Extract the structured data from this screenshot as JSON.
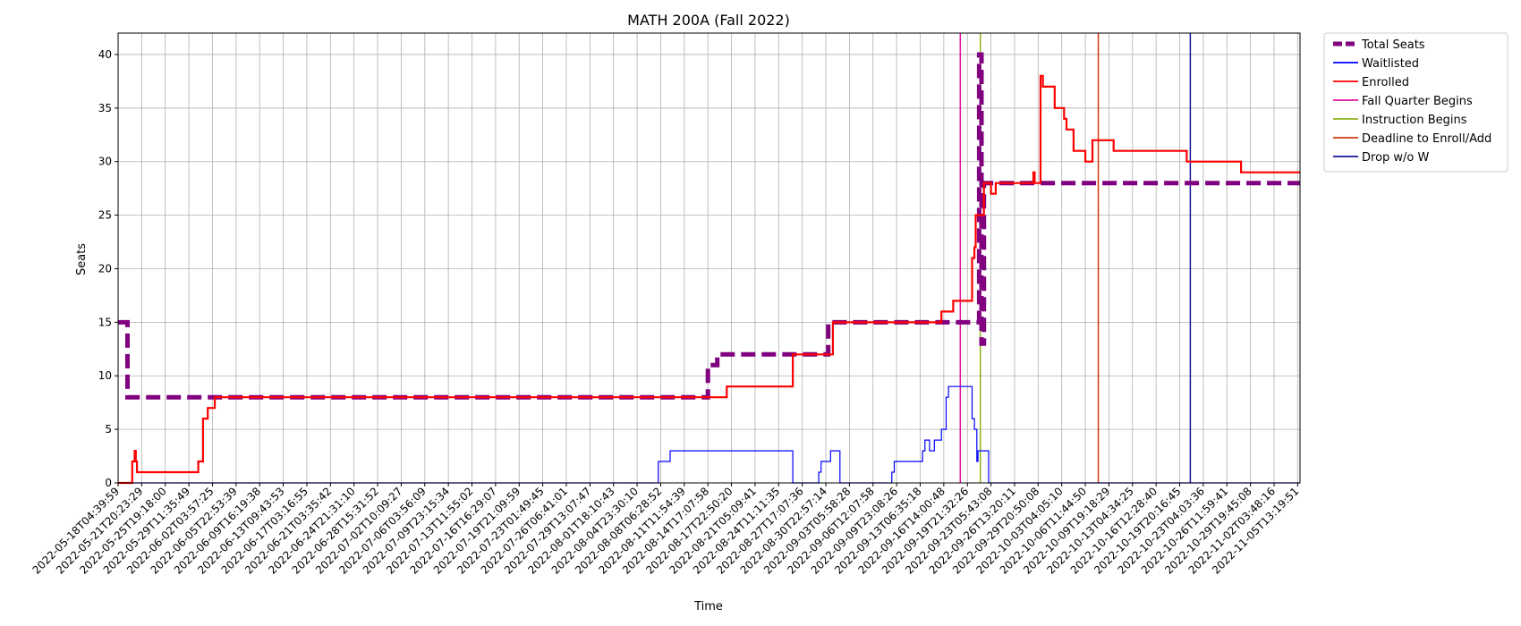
{
  "chart_data": {
    "type": "line",
    "title": "MATH 200A (Fall 2022)",
    "xlabel": "Time",
    "ylabel": "Seats",
    "ylim": [
      0,
      42
    ],
    "yticks": [
      0,
      5,
      10,
      15,
      20,
      25,
      30,
      35,
      40
    ],
    "grid": true,
    "legend_position": "outside-top-right",
    "x_tick_labels": [
      "2022-05-18T04:39:59",
      "2022-05-21T20:23:29",
      "2022-05-25T19:18:00",
      "2022-05-29T11:35:49",
      "2022-06-02T03:57:25",
      "2022-06-05T22:53:39",
      "2022-06-09T16:19:38",
      "2022-06-13T09:43:53",
      "2022-06-17T03:16:55",
      "2022-06-21T03:35:42",
      "2022-06-24T21:31:10",
      "2022-06-28T15:31:52",
      "2022-07-02T10:09:27",
      "2022-07-06T03:56:09",
      "2022-07-09T23:15:34",
      "2022-07-13T11:55:02",
      "2022-07-16T16:29:07",
      "2022-07-19T21:09:59",
      "2022-07-23T01:49:45",
      "2022-07-26T06:41:01",
      "2022-07-29T13:07:47",
      "2022-08-01T18:10:43",
      "2022-08-04T23:30:10",
      "2022-08-08T06:28:52",
      "2022-08-11T11:54:39",
      "2022-08-14T17:07:58",
      "2022-08-17T22:50:20",
      "2022-08-21T05:09:41",
      "2022-08-24T11:11:35",
      "2022-08-27T17:07:36",
      "2022-08-30T22:57:14",
      "2022-09-03T05:58:28",
      "2022-09-06T12:07:58",
      "2022-09-09T23:08:26",
      "2022-09-13T06:35:18",
      "2022-09-16T14:00:48",
      "2022-09-19T21:32:26",
      "2022-09-23T05:43:08",
      "2022-09-26T13:20:11",
      "2022-09-29T20:50:08",
      "2022-10-03T04:05:10",
      "2022-10-06T11:44:50",
      "2022-10-09T19:18:29",
      "2022-10-13T04:34:25",
      "2022-10-16T12:28:40",
      "2022-10-19T20:16:45",
      "2022-10-23T04:03:36",
      "2022-10-26T11:59:41",
      "2022-10-29T19:45:08",
      "2022-11-02T03:48:16",
      "2022-11-05T13:19:51"
    ],
    "x_range": [
      0,
      50.1
    ],
    "series": [
      {
        "name": "Total Seats",
        "color": "#800080",
        "style": "dashed",
        "width": 5,
        "points": [
          [
            0,
            15
          ],
          [
            0.4,
            15
          ],
          [
            0.4,
            8
          ],
          [
            25,
            8
          ],
          [
            25,
            11
          ],
          [
            25.4,
            11
          ],
          [
            25.4,
            12
          ],
          [
            30.1,
            12
          ],
          [
            30.1,
            15
          ],
          [
            36.5,
            15
          ],
          [
            36.5,
            40
          ],
          [
            36.6,
            40
          ],
          [
            36.6,
            13
          ],
          [
            36.7,
            13
          ],
          [
            36.7,
            28
          ],
          [
            50.1,
            28
          ]
        ]
      },
      {
        "name": "Waitlisted",
        "color": "#0000ff",
        "style": "solid",
        "width": 1.2,
        "points": [
          [
            0,
            0
          ],
          [
            22.9,
            0
          ],
          [
            22.9,
            2
          ],
          [
            23.4,
            2
          ],
          [
            23.4,
            3
          ],
          [
            28.6,
            3
          ],
          [
            28.6,
            0
          ],
          [
            29.7,
            0
          ],
          [
            29.7,
            1
          ],
          [
            29.8,
            1
          ],
          [
            29.8,
            2
          ],
          [
            30.2,
            2
          ],
          [
            30.2,
            3
          ],
          [
            30.6,
            3
          ],
          [
            30.6,
            0
          ],
          [
            32.8,
            0
          ],
          [
            32.8,
            1
          ],
          [
            32.9,
            1
          ],
          [
            32.9,
            2
          ],
          [
            34.1,
            2
          ],
          [
            34.1,
            3
          ],
          [
            34.2,
            3
          ],
          [
            34.2,
            4
          ],
          [
            34.4,
            4
          ],
          [
            34.4,
            3
          ],
          [
            34.6,
            3
          ],
          [
            34.6,
            4
          ],
          [
            34.9,
            4
          ],
          [
            34.9,
            5
          ],
          [
            35.1,
            5
          ],
          [
            35.1,
            8
          ],
          [
            35.2,
            8
          ],
          [
            35.2,
            9
          ],
          [
            36.2,
            9
          ],
          [
            36.2,
            6
          ],
          [
            36.3,
            6
          ],
          [
            36.3,
            5
          ],
          [
            36.4,
            5
          ],
          [
            36.4,
            2
          ],
          [
            36.45,
            2
          ],
          [
            36.45,
            3
          ],
          [
            36.9,
            3
          ],
          [
            36.9,
            0
          ],
          [
            50.1,
            0
          ]
        ]
      },
      {
        "name": "Enrolled",
        "color": "#ff0000",
        "style": "solid",
        "width": 2.2,
        "points": [
          [
            0,
            0
          ],
          [
            0.6,
            0
          ],
          [
            0.6,
            2
          ],
          [
            0.7,
            2
          ],
          [
            0.7,
            3
          ],
          [
            0.75,
            3
          ],
          [
            0.75,
            2
          ],
          [
            0.8,
            2
          ],
          [
            0.8,
            1
          ],
          [
            3.4,
            1
          ],
          [
            3.4,
            2
          ],
          [
            3.6,
            2
          ],
          [
            3.6,
            6
          ],
          [
            3.8,
            6
          ],
          [
            3.8,
            7
          ],
          [
            4.1,
            7
          ],
          [
            4.1,
            8
          ],
          [
            25.8,
            8
          ],
          [
            25.8,
            9
          ],
          [
            28.6,
            9
          ],
          [
            28.6,
            12
          ],
          [
            30.3,
            12
          ],
          [
            30.3,
            15
          ],
          [
            34.9,
            15
          ],
          [
            34.9,
            16
          ],
          [
            35.4,
            16
          ],
          [
            35.4,
            17
          ],
          [
            36.2,
            17
          ],
          [
            36.2,
            21
          ],
          [
            36.3,
            21
          ],
          [
            36.3,
            22
          ],
          [
            36.35,
            22
          ],
          [
            36.35,
            25
          ],
          [
            36.7,
            25
          ],
          [
            36.7,
            28
          ],
          [
            37.0,
            28
          ],
          [
            37.0,
            27
          ],
          [
            37.2,
            27
          ],
          [
            37.2,
            28
          ],
          [
            38.8,
            28
          ],
          [
            38.8,
            29
          ],
          [
            38.85,
            29
          ],
          [
            38.85,
            28
          ],
          [
            39.1,
            28
          ],
          [
            39.1,
            38
          ],
          [
            39.2,
            38
          ],
          [
            39.2,
            37
          ],
          [
            39.7,
            37
          ],
          [
            39.7,
            35
          ],
          [
            40.1,
            35
          ],
          [
            40.1,
            34
          ],
          [
            40.2,
            34
          ],
          [
            40.2,
            33
          ],
          [
            40.5,
            33
          ],
          [
            40.5,
            31
          ],
          [
            41.0,
            31
          ],
          [
            41.0,
            30
          ],
          [
            41.3,
            30
          ],
          [
            41.3,
            32
          ],
          [
            42.2,
            32
          ],
          [
            42.2,
            31
          ],
          [
            45.3,
            31
          ],
          [
            45.3,
            30
          ],
          [
            47.6,
            30
          ],
          [
            47.6,
            29
          ],
          [
            50.1,
            29
          ]
        ]
      }
    ],
    "vlines": [
      {
        "name": "Fall Quarter Begins",
        "color": "#e0119f",
        "x": 35.7
      },
      {
        "name": "Instruction Begins",
        "color": "#8fb21c",
        "x": 36.55
      },
      {
        "name": "Deadline to Enroll/Add",
        "color": "#cc3c0a",
        "x": 41.55
      },
      {
        "name": "Drop w/o W",
        "color": "#1a1496",
        "x": 45.45
      }
    ],
    "legend": [
      {
        "label": "Total Seats",
        "color": "#800080",
        "style": "dashed"
      },
      {
        "label": "Waitlisted",
        "color": "#0000ff",
        "style": "solid"
      },
      {
        "label": "Enrolled",
        "color": "#ff0000",
        "style": "solid"
      },
      {
        "label": "Fall Quarter Begins",
        "color": "#e0119f",
        "style": "solid"
      },
      {
        "label": "Instruction Begins",
        "color": "#8fb21c",
        "style": "solid"
      },
      {
        "label": "Deadline to Enroll/Add",
        "color": "#cc3c0a",
        "style": "solid"
      },
      {
        "label": "Drop w/o W",
        "color": "#1a1496",
        "style": "solid"
      }
    ]
  }
}
